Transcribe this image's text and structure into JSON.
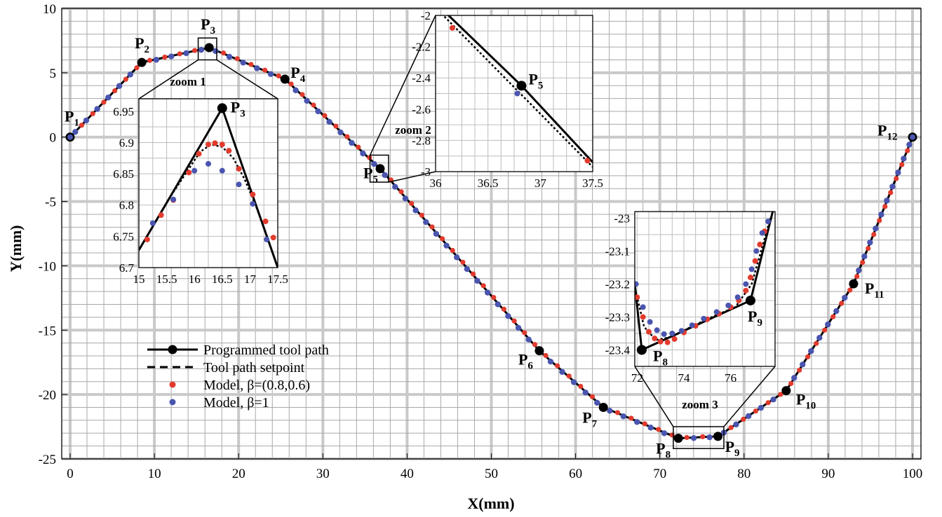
{
  "chart_data": {
    "type": "line",
    "title": "",
    "xlabel": "X(mm)",
    "ylabel": "Y(mm)",
    "xlim": [
      -1,
      101
    ],
    "ylim": [
      -25,
      10
    ],
    "xticks": [
      "0",
      "10",
      "20",
      "30",
      "40",
      "50",
      "60",
      "70",
      "80",
      "90",
      "100"
    ],
    "yticks": [
      "10",
      "5",
      "0",
      "-5",
      "-10",
      "-15",
      "-20",
      "-25"
    ],
    "grid": true,
    "legend_position": "bottom-left",
    "colors": {
      "programmed": "#000000",
      "setpoint": "#000000",
      "model_beta": "#e23b2e",
      "model_one": "#4a55b0"
    },
    "legend": [
      {
        "label": "Programmed tool path",
        "key": "programmed",
        "style": "solid-marker"
      },
      {
        "label": "Tool path setpoint",
        "key": "setpoint",
        "style": "dashed"
      },
      {
        "label": "Model, β=(0.8,0.6)",
        "key": "model_beta",
        "style": "dot"
      },
      {
        "label": "Model, β=1",
        "key": "model_one",
        "style": "dot"
      }
    ],
    "points": [
      {
        "name": "P1",
        "main": "P",
        "sub": "1",
        "x": 0,
        "y": 0
      },
      {
        "name": "P2",
        "main": "P",
        "sub": "2",
        "x": 8.5,
        "y": 5.8
      },
      {
        "name": "P3",
        "main": "P",
        "sub": "3",
        "x": 16.5,
        "y": 6.95
      },
      {
        "name": "P4",
        "main": "P",
        "sub": "4",
        "x": 25.5,
        "y": 4.5
      },
      {
        "name": "P5",
        "main": "P",
        "sub": "5",
        "x": 36.8,
        "y": -2.45
      },
      {
        "name": "P6",
        "main": "P",
        "sub": "6",
        "x": 55.7,
        "y": -16.6
      },
      {
        "name": "P7",
        "main": "P",
        "sub": "7",
        "x": 63.3,
        "y": -21.0
      },
      {
        "name": "P8",
        "main": "P",
        "sub": "8",
        "x": 72.2,
        "y": -23.4
      },
      {
        "name": "P9",
        "main": "P",
        "sub": "9",
        "x": 76.9,
        "y": -23.25
      },
      {
        "name": "P10",
        "main": "P",
        "sub": "10",
        "x": 85.0,
        "y": -19.7
      },
      {
        "name": "P11",
        "main": "P",
        "sub": "11",
        "x": 93.0,
        "y": -11.4
      },
      {
        "name": "P12",
        "main": "P",
        "sub": "12",
        "x": 100,
        "y": 0
      }
    ],
    "insets": [
      {
        "name": "zoom 1",
        "label": "zoom 1",
        "xlim": [
          15,
          17.5
        ],
        "ylim": [
          6.7,
          6.97
        ],
        "xticks": [
          "15",
          "15.5",
          "16",
          "16.5",
          "17",
          "17.5"
        ],
        "yticks": [
          "6.95",
          "6.9",
          "6.85",
          "6.8",
          "6.75",
          "6.7"
        ],
        "point_label": {
          "main": "P",
          "sub": "3"
        },
        "programmed": [
          [
            15.0,
            6.728
          ],
          [
            16.5,
            6.955
          ],
          [
            17.5,
            6.7
          ]
        ],
        "setpoint": [
          [
            15.0,
            6.728
          ],
          [
            15.3,
            6.773
          ],
          [
            15.6,
            6.818
          ],
          [
            15.9,
            6.858
          ],
          [
            16.1,
            6.885
          ],
          [
            16.3,
            6.897
          ],
          [
            16.5,
            6.893
          ],
          [
            16.7,
            6.875
          ],
          [
            16.9,
            6.842
          ],
          [
            17.1,
            6.8
          ],
          [
            17.3,
            6.752
          ],
          [
            17.5,
            6.7
          ]
        ],
        "model_beta": [
          [
            15.15,
            6.745
          ],
          [
            15.4,
            6.784
          ],
          [
            15.62,
            6.808
          ],
          [
            15.9,
            6.852
          ],
          [
            16.08,
            6.882
          ],
          [
            16.25,
            6.897
          ],
          [
            16.37,
            6.899
          ],
          [
            16.5,
            6.897
          ],
          [
            16.62,
            6.887
          ],
          [
            16.8,
            6.858
          ],
          [
            17.05,
            6.817
          ],
          [
            17.28,
            6.774
          ],
          [
            17.42,
            6.748
          ]
        ],
        "model_one": [
          [
            15.25,
            6.771
          ],
          [
            15.62,
            6.809
          ],
          [
            16.0,
            6.855
          ],
          [
            16.25,
            6.866
          ],
          [
            16.5,
            6.855
          ],
          [
            16.8,
            6.833
          ],
          [
            17.05,
            6.802
          ],
          [
            17.3,
            6.745
          ]
        ]
      },
      {
        "name": "zoom 2",
        "label": "zoom 2",
        "xlim": [
          36,
          37.5
        ],
        "ylim": [
          -3,
          -2
        ],
        "xticks": [
          "36",
          "36.5",
          "37",
          "37.5"
        ],
        "yticks": [
          "-2",
          "-2.2",
          "-2.4",
          "-2.6",
          "-2.8",
          "-3"
        ],
        "point_label": {
          "main": "P",
          "sub": "5"
        },
        "programmed": [
          [
            36.0,
            -1.92
          ],
          [
            36.82,
            -2.45
          ],
          [
            37.5,
            -2.94
          ]
        ],
        "setpoint": [
          [
            36.0,
            -1.95
          ],
          [
            37.5,
            -2.97
          ]
        ],
        "model_beta": [
          [
            36.16,
            -2.08
          ],
          [
            37.45,
            -2.93
          ]
        ],
        "model_one": [
          [
            36.78,
            -2.5
          ]
        ]
      },
      {
        "name": "zoom 3",
        "label": "zoom 3",
        "xlim": [
          71.9,
          77.9
        ],
        "ylim": [
          -23.45,
          -22.98
        ],
        "xticks": [
          "72",
          "74",
          "76"
        ],
        "yticks": [
          "-23",
          "-23.1",
          "-23.2",
          "-23.3",
          "-23.4"
        ],
        "point_label_a": {
          "main": "P",
          "sub": "8"
        },
        "point_label_b": {
          "main": "P",
          "sub": "9"
        },
        "programmed": [
          [
            71.9,
            -23.2
          ],
          [
            72.2,
            -23.4
          ],
          [
            76.85,
            -23.25
          ],
          [
            77.8,
            -22.98
          ]
        ],
        "setpoint": [
          [
            71.9,
            -23.21
          ],
          [
            72.3,
            -23.33
          ],
          [
            72.8,
            -23.37
          ],
          [
            73.5,
            -23.36
          ],
          [
            74.3,
            -23.33
          ],
          [
            75.2,
            -23.3
          ],
          [
            76.2,
            -23.27
          ],
          [
            76.9,
            -23.2
          ],
          [
            77.3,
            -23.1
          ],
          [
            77.7,
            -23.0
          ]
        ],
        "model_beta": [
          [
            72.0,
            -23.24
          ],
          [
            72.25,
            -23.3
          ],
          [
            72.5,
            -23.345
          ],
          [
            72.75,
            -23.365
          ],
          [
            73.0,
            -23.375
          ],
          [
            73.3,
            -23.377
          ],
          [
            73.6,
            -23.367
          ],
          [
            74.0,
            -23.347
          ],
          [
            74.5,
            -23.327
          ],
          [
            75.0,
            -23.307
          ],
          [
            75.5,
            -23.29
          ],
          [
            76.0,
            -23.27
          ],
          [
            76.35,
            -23.25
          ],
          [
            76.65,
            -23.22
          ],
          [
            76.85,
            -23.18
          ],
          [
            77.05,
            -23.13
          ],
          [
            77.25,
            -23.08
          ],
          [
            77.45,
            -23.04
          ]
        ],
        "model_one": [
          [
            71.95,
            -23.2
          ],
          [
            72.25,
            -23.27
          ],
          [
            72.55,
            -23.315
          ],
          [
            72.85,
            -23.34
          ],
          [
            73.15,
            -23.352
          ],
          [
            73.5,
            -23.35
          ],
          [
            73.9,
            -23.342
          ],
          [
            74.35,
            -23.325
          ],
          [
            74.85,
            -23.305
          ],
          [
            75.4,
            -23.285
          ],
          [
            75.9,
            -23.265
          ],
          [
            76.3,
            -23.24
          ],
          [
            76.65,
            -23.2
          ],
          [
            76.9,
            -23.155
          ],
          [
            77.1,
            -23.1
          ],
          [
            77.35,
            -23.045
          ],
          [
            77.6,
            -23.01
          ]
        ]
      }
    ]
  }
}
